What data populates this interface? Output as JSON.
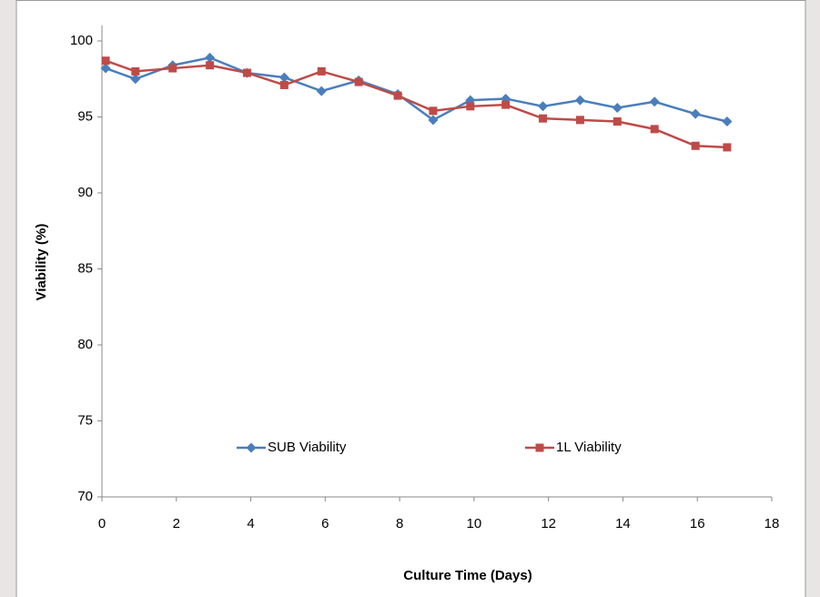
{
  "chart_data": {
    "type": "line",
    "x_label": "Culture Time (Days)",
    "y_label": "Viability (%)",
    "x": [
      0.1,
      0.9,
      1.9,
      2.9,
      3.9,
      4.9,
      5.9,
      6.9,
      7.95,
      8.9,
      9.9,
      10.85,
      11.85,
      12.85,
      13.85,
      14.85,
      15.95,
      16.8
    ],
    "series": [
      {
        "name": "SUB Viability",
        "color": "#4a7ebb",
        "marker": "diamond",
        "values": [
          98.2,
          97.5,
          98.4,
          98.9,
          97.9,
          97.6,
          96.7,
          97.4,
          96.5,
          94.8,
          96.1,
          96.2,
          95.7,
          96.1,
          95.6,
          96.0,
          95.2,
          94.7
        ]
      },
      {
        "name": "1L Viability",
        "color": "#be4b48",
        "marker": "square",
        "values": [
          98.7,
          98.0,
          98.2,
          98.4,
          97.9,
          97.1,
          98.0,
          97.3,
          96.4,
          95.4,
          95.7,
          95.8,
          94.9,
          94.8,
          94.7,
          94.2,
          93.1,
          93.0
        ]
      }
    ],
    "xlim": [
      0,
      18
    ],
    "xticks": [
      0,
      2,
      4,
      6,
      8,
      10,
      12,
      14,
      16,
      18
    ],
    "ylim": [
      70,
      100
    ],
    "yticks": [
      70,
      75,
      80,
      85,
      90,
      95,
      100
    ],
    "grid": false,
    "legend": "lower-center"
  }
}
